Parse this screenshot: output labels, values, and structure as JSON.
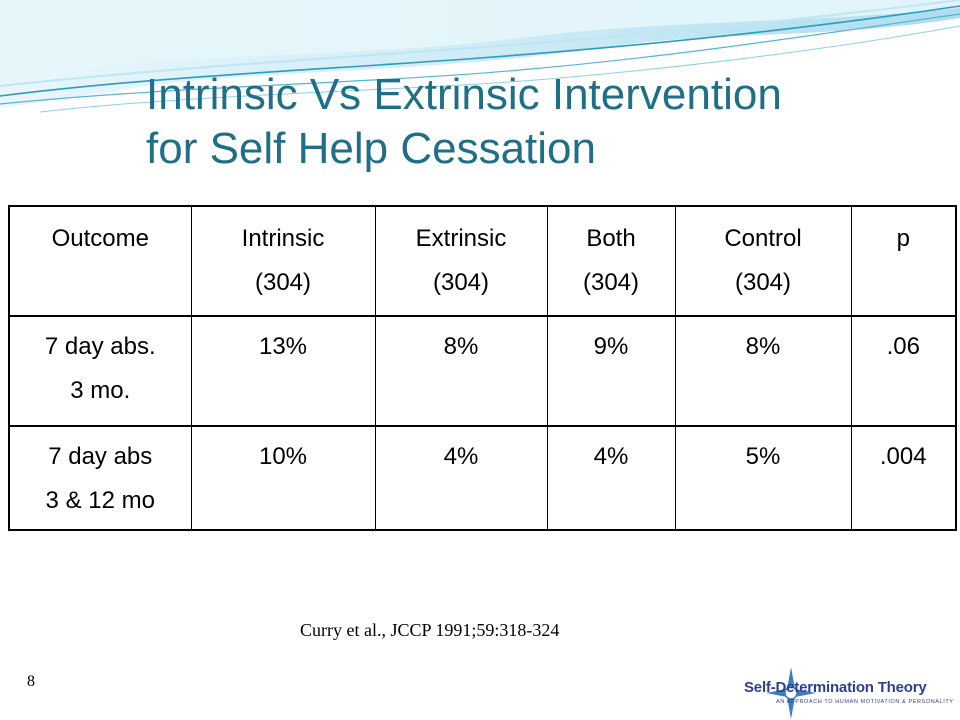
{
  "slide": {
    "title_line1": "Intrinsic Vs Extrinsic Intervention",
    "title_line2": "for Self Help Cessation",
    "citation": "Curry et al., JCCP 1991;59:318-324",
    "slide_number": "8"
  },
  "table": {
    "header": [
      {
        "line1": "Outcome",
        "line2": ""
      },
      {
        "line1": "Intrinsic",
        "line2": "(304)"
      },
      {
        "line1": "Extrinsic",
        "line2": "(304)"
      },
      {
        "line1": "Both",
        "line2": "(304)"
      },
      {
        "line1": "Control",
        "line2": "(304)"
      },
      {
        "line1": "p",
        "line2": ""
      }
    ],
    "rows": [
      {
        "outcome_line1": "7 day abs.",
        "outcome_line2": "3 mo.",
        "intrinsic": "13%",
        "extrinsic": "8%",
        "both": "9%",
        "control": "8%",
        "p": ".06"
      },
      {
        "outcome_line1": "7 day abs",
        "outcome_line2": "3 & 12 mo",
        "intrinsic": "10%",
        "extrinsic": "4%",
        "both": "4%",
        "control": "5%",
        "p": ".004"
      }
    ]
  },
  "logo": {
    "text": "Self-Determination Theory",
    "subtitle": "AN APPROACH TO HUMAN MOTIVATION & PERSONALITY",
    "icon": "compass-star-icon"
  },
  "colors": {
    "title": "#1f6f86",
    "wave_dark": "#2a9cc0",
    "wave_light": "#bfe6f3",
    "logo": "#2f3f8f",
    "logo_star": "#3a7fc0"
  }
}
